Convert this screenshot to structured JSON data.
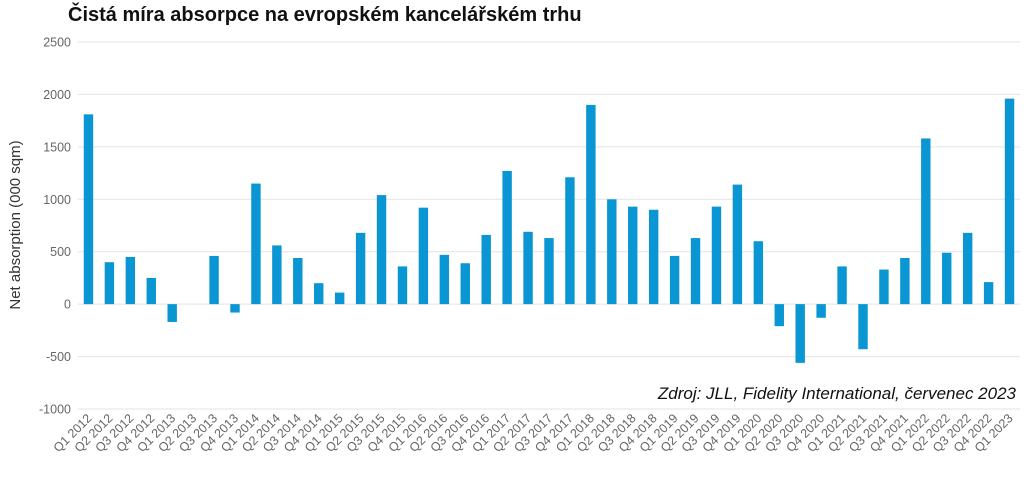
{
  "chart_data": {
    "type": "bar",
    "title": "Čistá míra absorpce na evropském kancelářském trhu",
    "xlabel": "",
    "ylabel": "Net absorption (000 sqm)",
    "ylim": [
      -1000,
      2500
    ],
    "yticks": [
      2500,
      2000,
      1500,
      1000,
      500,
      0,
      -500,
      -1000
    ],
    "grid": true,
    "source": "Zdroj: JLL, Fidelity International, červenec 2023",
    "color": "#0a96d2",
    "categories": [
      "Q1 2012",
      "Q2 2012",
      "Q3 2012",
      "Q4 2012",
      "Q1 2013",
      "Q2 2013",
      "Q3 2013",
      "Q4 2013",
      "Q1 2014",
      "Q2 2014",
      "Q3 2014",
      "Q4 2014",
      "Q1 2015",
      "Q2 2015",
      "Q3 2015",
      "Q4 2015",
      "Q1 2016",
      "Q2 2016",
      "Q3 2016",
      "Q4 2016",
      "Q1 2017",
      "Q2 2017",
      "Q3 2017",
      "Q4 2017",
      "Q1 2018",
      "Q2 2018",
      "Q3 2018",
      "Q4 2018",
      "Q1 2019",
      "Q2 2019",
      "Q3 2019",
      "Q4 2019",
      "Q1 2020",
      "Q2 2020",
      "Q3 2020",
      "Q4 2020",
      "Q1 2021",
      "Q2 2021",
      "Q3 2021",
      "Q4 2021",
      "Q1 2022",
      "Q2 2022",
      "Q3 2022",
      "Q4 2022",
      "Q1 2023"
    ],
    "values": [
      1810,
      400,
      450,
      250,
      -170,
      0,
      460,
      -80,
      1150,
      560,
      440,
      200,
      110,
      680,
      1040,
      360,
      920,
      470,
      390,
      660,
      1270,
      690,
      630,
      1210,
      1900,
      1000,
      930,
      900,
      460,
      630,
      930,
      1140,
      600,
      -210,
      -560,
      -130,
      360,
      -430,
      330,
      440,
      1580,
      490,
      680,
      210,
      1960
    ]
  }
}
